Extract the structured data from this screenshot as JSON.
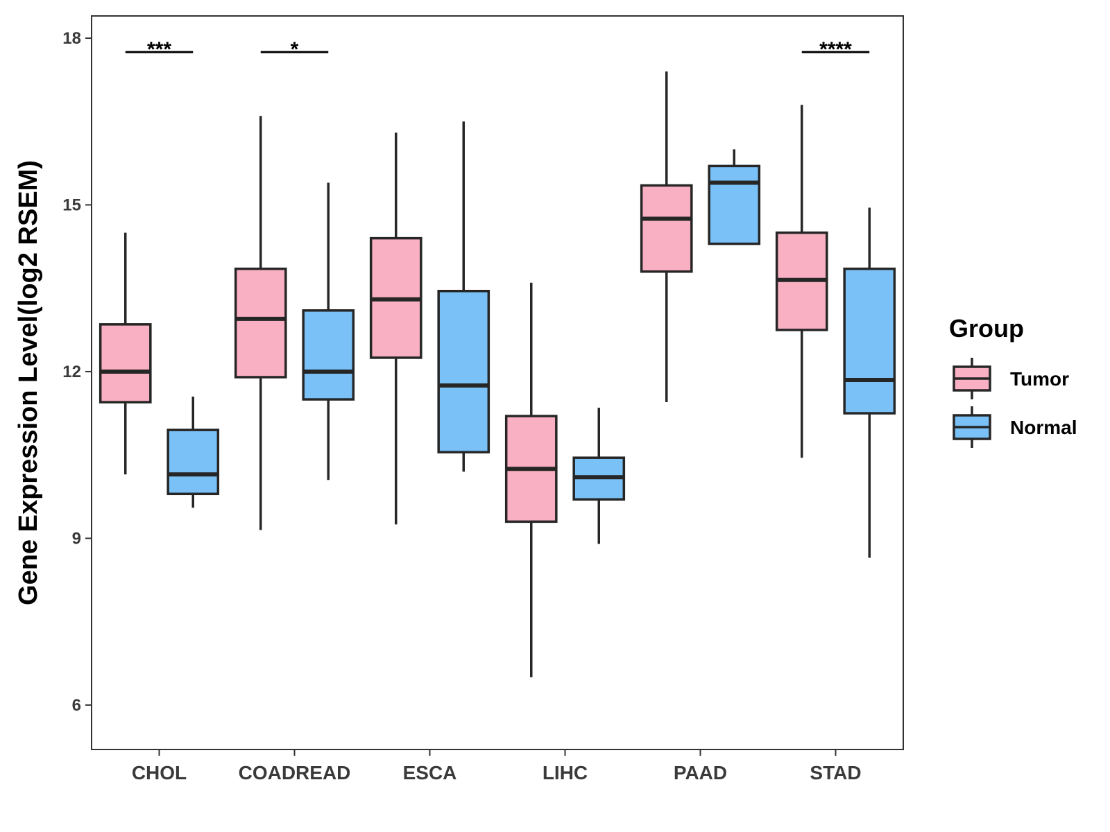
{
  "chart_data": {
    "type": "boxplot",
    "ylabel": "Gene Expression Level(log2 RSEM)",
    "xlabel": "",
    "ylim": [
      5.2,
      18.4
    ],
    "yticks": [
      6,
      9,
      12,
      15,
      18
    ],
    "ytick_labels": [
      "6",
      "9",
      "12",
      "15",
      "18"
    ],
    "categories": [
      "CHOL",
      "COADREAD",
      "ESCA",
      "LIHC",
      "PAAD",
      "STAD"
    ],
    "legend": {
      "title": "Group",
      "position": "right",
      "entries": [
        {
          "name": "Tumor",
          "color": "#f9b0c3"
        },
        {
          "name": "Normal",
          "color": "#79c1f7"
        }
      ]
    },
    "series": [
      {
        "name": "Tumor",
        "color": "#f9b0c3",
        "boxes": [
          {
            "min": 10.15,
            "q1": 11.45,
            "median": 12.0,
            "q3": 12.85,
            "max": 14.5
          },
          {
            "min": 9.15,
            "q1": 11.9,
            "median": 12.95,
            "q3": 13.85,
            "max": 16.6
          },
          {
            "min": 9.25,
            "q1": 12.25,
            "median": 13.3,
            "q3": 14.4,
            "max": 16.3
          },
          {
            "min": 6.5,
            "q1": 9.3,
            "median": 10.25,
            "q3": 11.2,
            "max": 13.6
          },
          {
            "min": 11.45,
            "q1": 13.8,
            "median": 14.75,
            "q3": 15.35,
            "max": 17.4
          },
          {
            "min": 10.45,
            "q1": 12.75,
            "median": 13.65,
            "q3": 14.5,
            "max": 16.8
          }
        ]
      },
      {
        "name": "Normal",
        "color": "#79c1f7",
        "boxes": [
          {
            "min": 9.55,
            "q1": 9.8,
            "median": 10.15,
            "q3": 10.95,
            "max": 11.55
          },
          {
            "min": 10.05,
            "q1": 11.5,
            "median": 12.0,
            "q3": 13.1,
            "max": 15.4
          },
          {
            "min": 10.2,
            "q1": 10.55,
            "median": 11.75,
            "q3": 13.45,
            "max": 16.5
          },
          {
            "min": 8.9,
            "q1": 9.7,
            "median": 10.1,
            "q3": 10.45,
            "max": 11.35
          },
          {
            "min": 14.3,
            "q1": 14.3,
            "median": 15.4,
            "q3": 15.7,
            "max": 16.0
          },
          {
            "min": 8.65,
            "q1": 11.25,
            "median": 11.85,
            "q3": 13.85,
            "max": 14.95
          }
        ]
      }
    ],
    "significance": [
      {
        "category": "CHOL",
        "label": "***"
      },
      {
        "category": "COADREAD",
        "label": "*"
      },
      {
        "category": "STAD",
        "label": "****"
      }
    ],
    "grid": false
  }
}
